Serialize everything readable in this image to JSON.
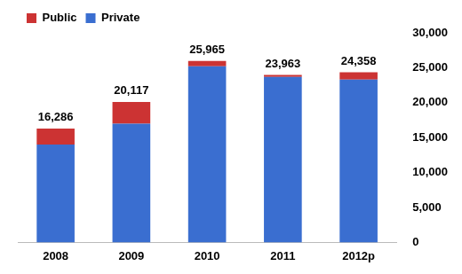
{
  "chart_data": {
    "type": "bar",
    "categories": [
      "2008",
      "2009",
      "2010",
      "2011",
      "2012p"
    ],
    "series": [
      {
        "name": "Private",
        "color": "#3a6ed0",
        "values": [
          14000,
          17000,
          25200,
          23700,
          23300
        ]
      },
      {
        "name": "Public",
        "color": "#cc3333",
        "values": [
          2286,
          3117,
          765,
          263,
          1058
        ]
      }
    ],
    "totals": [
      16286,
      20117,
      25965,
      23963,
      24358
    ],
    "total_labels": [
      "16,286",
      "20,117",
      "25,965",
      "23,963",
      "24,358"
    ],
    "stacked": true,
    "legend": "top-left",
    "grid": false,
    "ylim": [
      0,
      30000
    ],
    "yticks": [
      0,
      {
        "value": 5000,
        "label": "5,000"
      },
      {
        "value": 10000,
        "label": "10,000"
      },
      {
        "value": 15000,
        "label": "15,000"
      },
      {
        "value": 20000,
        "label": "20,000"
      },
      {
        "value": 25000,
        "label": "25,000"
      },
      {
        "value": 30000,
        "label": "30,000"
      }
    ]
  }
}
